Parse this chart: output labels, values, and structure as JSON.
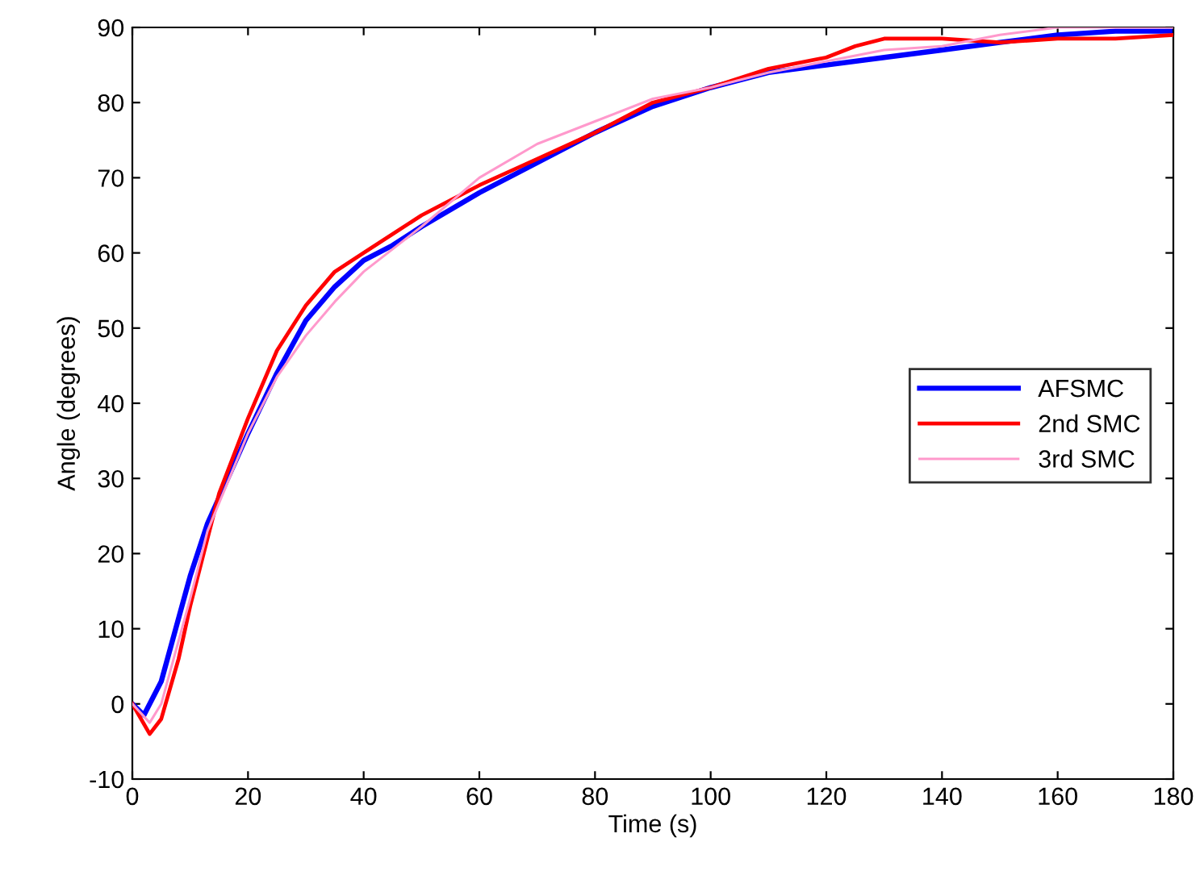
{
  "chart_data": {
    "type": "line",
    "xlabel": "Time (s)",
    "ylabel": "Angle (degrees)",
    "xlim": [
      0,
      180
    ],
    "ylim": [
      -10,
      90
    ],
    "xticks": [
      0,
      20,
      40,
      60,
      80,
      100,
      120,
      140,
      160,
      180
    ],
    "yticks": [
      -10,
      0,
      10,
      20,
      30,
      40,
      50,
      60,
      70,
      80,
      90
    ],
    "grid": false,
    "legend": "right",
    "line_style": "solid",
    "marker": "none",
    "series": [
      {
        "name": "AFSMC",
        "color": "#0000ff",
        "x": [
          0,
          2,
          5,
          10,
          13,
          20,
          25,
          30,
          35,
          40,
          45,
          50,
          60,
          70,
          80,
          90,
          100,
          110,
          120,
          130,
          140,
          150,
          160,
          170,
          180
        ],
        "values": [
          0,
          -1.5,
          3,
          17,
          24,
          36,
          44,
          51,
          55.5,
          59,
          61,
          63.5,
          68,
          72,
          76,
          79.5,
          82,
          84,
          85,
          86,
          87,
          88,
          89,
          89.5,
          89.5
        ]
      },
      {
        "name": "2nd SMC",
        "color": "#ff0000",
        "x": [
          0,
          3,
          5,
          8,
          10,
          13,
          15,
          20,
          25,
          30,
          35,
          40,
          45,
          50,
          55,
          60,
          70,
          80,
          90,
          100,
          110,
          120,
          125,
          130,
          140,
          150,
          160,
          170,
          180
        ],
        "values": [
          0,
          -4,
          -2,
          6,
          13,
          22,
          28,
          38,
          47,
          53,
          57.5,
          60,
          62.5,
          65,
          67,
          69,
          72.5,
          76,
          80,
          82,
          84.5,
          86,
          87.5,
          88.5,
          88.5,
          88,
          88.5,
          88.5,
          89
        ]
      },
      {
        "name": "3rd SMC",
        "color": "#ff99cc",
        "x": [
          0,
          3,
          5,
          10,
          13,
          20,
          25,
          30,
          35,
          40,
          50,
          60,
          70,
          80,
          90,
          100,
          110,
          120,
          130,
          140,
          150,
          160,
          170,
          180
        ],
        "values": [
          0,
          -2.5,
          0,
          14,
          23,
          36,
          43.5,
          49,
          53.5,
          57.5,
          63.5,
          70,
          74.5,
          77.5,
          80.5,
          82,
          84,
          85.5,
          87,
          87.5,
          89,
          90,
          90,
          90
        ]
      }
    ]
  }
}
